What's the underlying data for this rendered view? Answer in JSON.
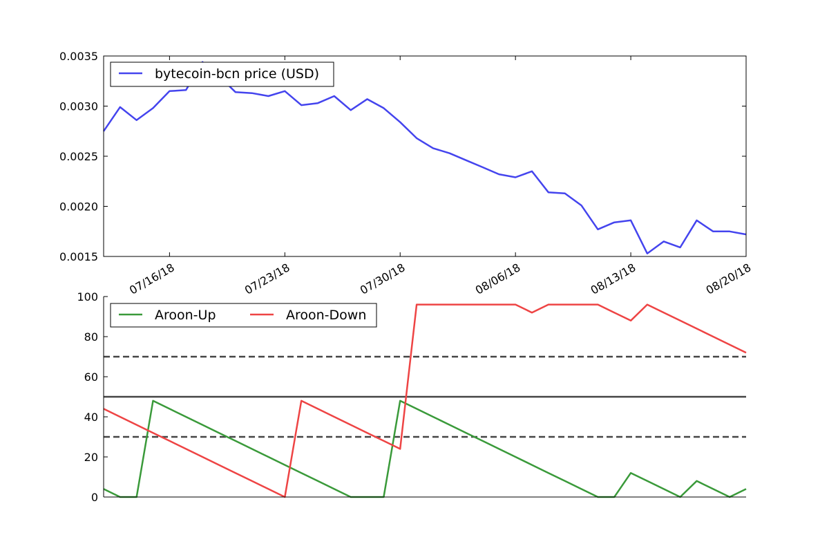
{
  "chart_data": [
    {
      "type": "line",
      "title": "",
      "xlabel": "",
      "ylabel": "",
      "x_ticks": [
        "07/16/18",
        "07/23/18",
        "07/30/18",
        "08/06/18",
        "08/13/18",
        "08/20/18"
      ],
      "ylim": [
        0.0015,
        0.0035
      ],
      "y_ticks": [
        0.0015,
        0.002,
        0.0025,
        0.003,
        0.0035
      ],
      "y_tick_labels": [
        "0.0015",
        "0.0020",
        "0.0025",
        "0.0030",
        "0.0035"
      ],
      "legend_position": "top-left",
      "grid": false,
      "series": [
        {
          "name": "bytecoin-bcn price (USD)",
          "color": "#4444ee",
          "x": [
            "07/12/18",
            "07/13/18",
            "07/14/18",
            "07/15/18",
            "07/16/18",
            "07/17/18",
            "07/18/18",
            "07/19/18",
            "07/20/18",
            "07/21/18",
            "07/22/18",
            "07/23/18",
            "07/24/18",
            "07/25/18",
            "07/26/18",
            "07/27/18",
            "07/28/18",
            "07/29/18",
            "07/30/18",
            "07/31/18",
            "08/01/18",
            "08/02/18",
            "08/03/18",
            "08/04/18",
            "08/05/18",
            "08/06/18",
            "08/07/18",
            "08/08/18",
            "08/09/18",
            "08/10/18",
            "08/11/18",
            "08/12/18",
            "08/13/18",
            "08/14/18",
            "08/15/18",
            "08/16/18",
            "08/17/18",
            "08/18/18",
            "08/19/18",
            "08/20/18"
          ],
          "values": [
            0.00275,
            0.00299,
            0.00286,
            0.00298,
            0.00315,
            0.00316,
            0.00344,
            0.0033,
            0.00314,
            0.00313,
            0.0031,
            0.00315,
            0.00301,
            0.00303,
            0.0031,
            0.00296,
            0.00307,
            0.00298,
            0.00284,
            0.00268,
            0.00258,
            0.00253,
            0.00246,
            0.00239,
            0.00232,
            0.00229,
            0.00235,
            0.00214,
            0.00213,
            0.00201,
            0.00177,
            0.00184,
            0.00186,
            0.00153,
            0.00165,
            0.00159,
            0.00186,
            0.00175,
            0.00175,
            0.00172
          ]
        }
      ]
    },
    {
      "type": "line",
      "title": "",
      "xlabel": "",
      "ylabel": "",
      "ylim": [
        0,
        100
      ],
      "y_ticks": [
        0,
        20,
        40,
        60,
        80,
        100
      ],
      "y_tick_labels": [
        "0",
        "20",
        "40",
        "60",
        "80",
        "100"
      ],
      "legend_position": "top-left",
      "grid": false,
      "reference_lines": [
        {
          "y": 70,
          "style": "dashed",
          "color": "#444444"
        },
        {
          "y": 50,
          "style": "solid",
          "color": "#444444"
        },
        {
          "y": 30,
          "style": "dashed",
          "color": "#444444"
        }
      ],
      "series": [
        {
          "name": "Aroon-Up",
          "color": "#3a9a3a",
          "x": [
            "07/12/18",
            "07/13/18",
            "07/14/18",
            "07/15/18",
            "07/16/18",
            "07/17/18",
            "07/18/18",
            "07/19/18",
            "07/20/18",
            "07/21/18",
            "07/22/18",
            "07/23/18",
            "07/24/18",
            "07/25/18",
            "07/26/18",
            "07/27/18",
            "07/28/18",
            "07/29/18",
            "07/30/18",
            "07/31/18",
            "08/01/18",
            "08/02/18",
            "08/03/18",
            "08/04/18",
            "08/05/18",
            "08/06/18",
            "08/07/18",
            "08/08/18",
            "08/09/18",
            "08/10/18",
            "08/11/18",
            "08/12/18",
            "08/13/18",
            "08/14/18",
            "08/15/18",
            "08/16/18",
            "08/17/18",
            "08/18/18",
            "08/19/18",
            "08/20/18"
          ],
          "values": [
            4,
            0,
            0,
            48,
            44,
            40,
            36,
            32,
            28,
            24,
            20,
            16,
            12,
            8,
            4,
            0,
            0,
            0,
            48,
            44,
            40,
            36,
            32,
            28,
            24,
            20,
            16,
            12,
            8,
            4,
            0,
            0,
            12,
            8,
            4,
            0,
            8,
            4,
            0,
            4
          ]
        },
        {
          "name": "Aroon-Down",
          "color": "#ee4444",
          "x": [
            "07/12/18",
            "07/13/18",
            "07/14/18",
            "07/15/18",
            "07/16/18",
            "07/17/18",
            "07/18/18",
            "07/19/18",
            "07/20/18",
            "07/21/18",
            "07/22/18",
            "07/23/18",
            "07/24/18",
            "07/25/18",
            "07/26/18",
            "07/27/18",
            "07/28/18",
            "07/29/18",
            "07/30/18",
            "07/31/18",
            "08/01/18",
            "08/02/18",
            "08/03/18",
            "08/04/18",
            "08/05/18",
            "08/06/18",
            "08/07/18",
            "08/08/18",
            "08/09/18",
            "08/10/18",
            "08/11/18",
            "08/12/18",
            "08/13/18",
            "08/14/18",
            "08/15/18",
            "08/16/18",
            "08/17/18",
            "08/18/18",
            "08/19/18",
            "08/20/18"
          ],
          "values": [
            44,
            40,
            36,
            32,
            28,
            24,
            20,
            16,
            12,
            8,
            4,
            0,
            48,
            44,
            40,
            36,
            32,
            28,
            24,
            96,
            96,
            96,
            96,
            96,
            96,
            96,
            92,
            96,
            96,
            96,
            96,
            92,
            88,
            96,
            92,
            88,
            84,
            80,
            76,
            72
          ]
        }
      ]
    }
  ]
}
